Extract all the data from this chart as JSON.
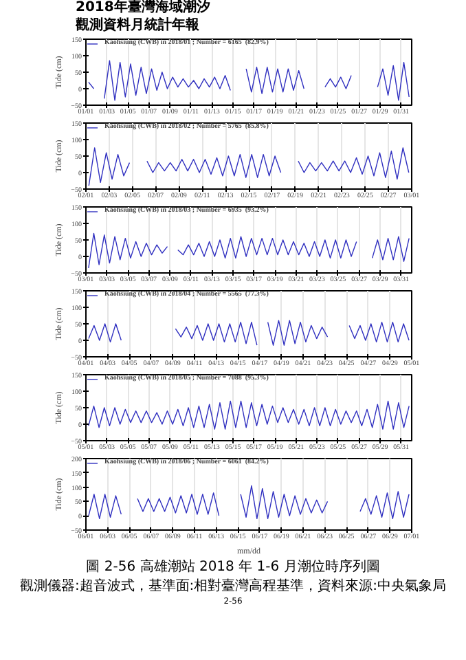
{
  "chart_data": [
    {
      "type": "line",
      "annotations": [
        "2018年臺灣海域潮汐",
        "觀測資料月統計年報"
      ],
      "ylabel": "Tide (cm)",
      "grid": "x",
      "legend": "top left",
      "line_style": "solid",
      "xlim": [
        "2018-01-01",
        "2018-02-01"
      ],
      "ylim": [
        -50,
        150
      ],
      "yticks": [
        -50,
        0,
        50,
        100,
        150
      ],
      "xticks": [
        {
          "value": "2018-01-01",
          "label": "01/01"
        },
        {
          "value": "2018-01-03",
          "label": "01/03"
        },
        {
          "value": "2018-01-05",
          "label": "01/05"
        },
        {
          "value": "2018-01-07",
          "label": "01/07"
        },
        {
          "value": "2018-01-09",
          "label": "01/09"
        },
        {
          "value": "2018-01-11",
          "label": "01/11"
        },
        {
          "value": "2018-01-13",
          "label": "01/13"
        },
        {
          "value": "2018-01-15",
          "label": "01/15"
        },
        {
          "value": "2018-01-17",
          "label": "01/17"
        },
        {
          "value": "2018-01-19",
          "label": "01/19"
        },
        {
          "value": "2018-01-21",
          "label": "01/21"
        },
        {
          "value": "2018-01-23",
          "label": "01/23"
        },
        {
          "value": "2018-01-25",
          "label": "01/25"
        },
        {
          "value": "2018-01-27",
          "label": "01/27"
        },
        {
          "value": "2018-01-29",
          "label": "01/29"
        },
        {
          "value": "2018-01-31",
          "label": "01/31"
        }
      ],
      "x": [
        "2018-01-01T06:00",
        "2018-01-01T18:00",
        "2018-01-02T06:00",
        "2018-01-02T18:00",
        "2018-01-03T06:00",
        "2018-01-03T18:00",
        "2018-01-04T06:00",
        "2018-01-04T18:00",
        "2018-01-05T06:00",
        "2018-01-05T18:00",
        "2018-01-06T06:00",
        "2018-01-06T18:00",
        "2018-01-07T06:00",
        "2018-01-07T18:00",
        "2018-01-08T06:00",
        "2018-01-08T18:00",
        "2018-01-09T06:00",
        "2018-01-09T18:00",
        "2018-01-10T06:00",
        "2018-01-10T18:00",
        "2018-01-11T06:00",
        "2018-01-11T18:00",
        "2018-01-12T06:00",
        "2018-01-12T18:00",
        "2018-01-13T06:00",
        "2018-01-13T18:00",
        "2018-01-14T06:00",
        "2018-01-14T18:00",
        "2018-01-15T06:00",
        "2018-01-15T18:00",
        "2018-01-16T06:00",
        "2018-01-16T18:00",
        "2018-01-17T06:00",
        "2018-01-17T18:00",
        "2018-01-18T06:00",
        "2018-01-18T18:00",
        "2018-01-19T06:00",
        "2018-01-19T18:00",
        "2018-01-20T06:00",
        "2018-01-20T18:00",
        "2018-01-21T06:00",
        "2018-01-21T18:00",
        "2018-01-22T06:00",
        "2018-01-22T18:00",
        "2018-01-23T06:00",
        "2018-01-23T18:00",
        "2018-01-24T06:00",
        "2018-01-24T18:00",
        "2018-01-25T06:00",
        "2018-01-25T18:00",
        "2018-01-26T06:00",
        "2018-01-26T18:00",
        "2018-01-27T06:00",
        "2018-01-27T18:00",
        "2018-01-28T06:00",
        "2018-01-28T18:00",
        "2018-01-29T06:00",
        "2018-01-29T18:00",
        "2018-01-30T06:00",
        "2018-01-30T18:00",
        "2018-01-31T06:00",
        "2018-01-31T18:00"
      ],
      "series": [
        {
          "name": "Kaohsiung (CWB) in 2018/01 ; Number = 6165  (82.9%)",
          "color": "#3030c0",
          "values": [
            20,
            0,
            null,
            -30,
            85,
            -35,
            80,
            -25,
            75,
            -20,
            65,
            -15,
            60,
            -5,
            50,
            0,
            35,
            5,
            30,
            5,
            25,
            0,
            30,
            5,
            35,
            0,
            40,
            -5,
            null,
            null,
            60,
            -10,
            65,
            -15,
            65,
            -10,
            60,
            -10,
            60,
            -5,
            55,
            0,
            null,
            null,
            null,
            5,
            30,
            5,
            35,
            0,
            40,
            null,
            null,
            null,
            null,
            5,
            60,
            -20,
            70,
            -35,
            80,
            -25
          ]
        }
      ]
    },
    {
      "type": "line",
      "ylabel": "Tide (cm)",
      "grid": "x",
      "legend": "top left",
      "line_style": "solid",
      "xlim": [
        "2018-02-01",
        "2018-03-01"
      ],
      "ylim": [
        -50,
        150
      ],
      "yticks": [
        -50,
        0,
        50,
        100,
        150
      ],
      "xticks": [
        {
          "value": "2018-02-01",
          "label": "02/01"
        },
        {
          "value": "2018-02-03",
          "label": "02/03"
        },
        {
          "value": "2018-02-05",
          "label": "02/05"
        },
        {
          "value": "2018-02-07",
          "label": "02/07"
        },
        {
          "value": "2018-02-09",
          "label": "02/09"
        },
        {
          "value": "2018-02-11",
          "label": "02/11"
        },
        {
          "value": "2018-02-13",
          "label": "02/13"
        },
        {
          "value": "2018-02-15",
          "label": "02/15"
        },
        {
          "value": "2018-02-17",
          "label": "02/17"
        },
        {
          "value": "2018-02-19",
          "label": "02/19"
        },
        {
          "value": "2018-02-21",
          "label": "02/21"
        },
        {
          "value": "2018-02-23",
          "label": "02/23"
        },
        {
          "value": "2018-02-25",
          "label": "02/25"
        },
        {
          "value": "2018-02-27",
          "label": "02/27"
        },
        {
          "value": "2018-03-01",
          "label": "03/01"
        }
      ],
      "x": [
        "2018-02-01T06:00",
        "2018-02-01T18:00",
        "2018-02-02T06:00",
        "2018-02-02T18:00",
        "2018-02-03T06:00",
        "2018-02-03T18:00",
        "2018-02-04T06:00",
        "2018-02-04T18:00",
        "2018-02-05T06:00",
        "2018-02-05T18:00",
        "2018-02-06T06:00",
        "2018-02-06T18:00",
        "2018-02-07T06:00",
        "2018-02-07T18:00",
        "2018-02-08T06:00",
        "2018-02-08T18:00",
        "2018-02-09T06:00",
        "2018-02-09T18:00",
        "2018-02-10T06:00",
        "2018-02-10T18:00",
        "2018-02-11T06:00",
        "2018-02-11T18:00",
        "2018-02-12T06:00",
        "2018-02-12T18:00",
        "2018-02-13T06:00",
        "2018-02-13T18:00",
        "2018-02-14T06:00",
        "2018-02-14T18:00",
        "2018-02-15T06:00",
        "2018-02-15T18:00",
        "2018-02-16T06:00",
        "2018-02-16T18:00",
        "2018-02-17T06:00",
        "2018-02-17T18:00",
        "2018-02-18T06:00",
        "2018-02-18T18:00",
        "2018-02-19T06:00",
        "2018-02-19T18:00",
        "2018-02-20T06:00",
        "2018-02-20T18:00",
        "2018-02-21T06:00",
        "2018-02-21T18:00",
        "2018-02-22T06:00",
        "2018-02-22T18:00",
        "2018-02-23T06:00",
        "2018-02-23T18:00",
        "2018-02-24T06:00",
        "2018-02-24T18:00",
        "2018-02-25T06:00",
        "2018-02-25T18:00",
        "2018-02-26T06:00",
        "2018-02-26T18:00",
        "2018-02-27T06:00",
        "2018-02-27T18:00",
        "2018-02-28T06:00",
        "2018-02-28T18:00"
      ],
      "series": [
        {
          "name": "Kaohsiung (CWB) in 2018/02 ; Number = 5765  (85.8%)",
          "color": "#3030c0",
          "values": [
            -40,
            75,
            -30,
            60,
            -20,
            55,
            -10,
            30,
            null,
            null,
            35,
            0,
            30,
            5,
            30,
            5,
            40,
            5,
            40,
            0,
            40,
            -5,
            45,
            -10,
            50,
            -10,
            55,
            -15,
            55,
            -15,
            55,
            -10,
            50,
            0,
            null,
            null,
            35,
            0,
            30,
            5,
            30,
            5,
            35,
            5,
            35,
            0,
            45,
            -5,
            50,
            -10,
            60,
            -15,
            65,
            -20,
            75,
            0
          ]
        }
      ]
    },
    {
      "type": "line",
      "ylabel": "Tide (cm)",
      "grid": "x",
      "legend": "top left",
      "line_style": "solid",
      "xlim": [
        "2018-03-01",
        "2018-04-01"
      ],
      "ylim": [
        -50,
        150
      ],
      "yticks": [
        -50,
        0,
        50,
        100,
        150
      ],
      "xticks": [
        {
          "value": "2018-03-01",
          "label": "03/01"
        },
        {
          "value": "2018-03-03",
          "label": "03/03"
        },
        {
          "value": "2018-03-05",
          "label": "03/05"
        },
        {
          "value": "2018-03-07",
          "label": "03/07"
        },
        {
          "value": "2018-03-09",
          "label": "03/09"
        },
        {
          "value": "2018-03-11",
          "label": "03/11"
        },
        {
          "value": "2018-03-13",
          "label": "03/13"
        },
        {
          "value": "2018-03-15",
          "label": "03/15"
        },
        {
          "value": "2018-03-17",
          "label": "03/17"
        },
        {
          "value": "2018-03-19",
          "label": "03/19"
        },
        {
          "value": "2018-03-21",
          "label": "03/21"
        },
        {
          "value": "2018-03-23",
          "label": "03/23"
        },
        {
          "value": "2018-03-25",
          "label": "03/25"
        },
        {
          "value": "2018-03-27",
          "label": "03/27"
        },
        {
          "value": "2018-03-29",
          "label": "03/29"
        },
        {
          "value": "2018-03-31",
          "label": "03/31"
        }
      ],
      "x": [
        "2018-03-01T06:00",
        "2018-03-01T18:00",
        "2018-03-02T06:00",
        "2018-03-02T18:00",
        "2018-03-03T06:00",
        "2018-03-03T18:00",
        "2018-03-04T06:00",
        "2018-03-04T18:00",
        "2018-03-05T06:00",
        "2018-03-05T18:00",
        "2018-03-06T06:00",
        "2018-03-06T18:00",
        "2018-03-07T06:00",
        "2018-03-07T18:00",
        "2018-03-08T06:00",
        "2018-03-08T18:00",
        "2018-03-09T06:00",
        "2018-03-09T18:00",
        "2018-03-10T06:00",
        "2018-03-10T18:00",
        "2018-03-11T06:00",
        "2018-03-11T18:00",
        "2018-03-12T06:00",
        "2018-03-12T18:00",
        "2018-03-13T06:00",
        "2018-03-13T18:00",
        "2018-03-14T06:00",
        "2018-03-14T18:00",
        "2018-03-15T06:00",
        "2018-03-15T18:00",
        "2018-03-16T06:00",
        "2018-03-16T18:00",
        "2018-03-17T06:00",
        "2018-03-17T18:00",
        "2018-03-18T06:00",
        "2018-03-18T18:00",
        "2018-03-19T06:00",
        "2018-03-19T18:00",
        "2018-03-20T06:00",
        "2018-03-20T18:00",
        "2018-03-21T06:00",
        "2018-03-21T18:00",
        "2018-03-22T06:00",
        "2018-03-22T18:00",
        "2018-03-23T06:00",
        "2018-03-23T18:00",
        "2018-03-24T06:00",
        "2018-03-24T18:00",
        "2018-03-25T06:00",
        "2018-03-25T18:00",
        "2018-03-26T06:00",
        "2018-03-26T18:00",
        "2018-03-27T06:00",
        "2018-03-27T18:00",
        "2018-03-28T06:00",
        "2018-03-28T18:00",
        "2018-03-29T06:00",
        "2018-03-29T18:00",
        "2018-03-30T06:00",
        "2018-03-30T18:00",
        "2018-03-31T06:00",
        "2018-03-31T18:00"
      ],
      "series": [
        {
          "name": "Kaohsiung (CWB) in 2018/03 ; Number = 6935  (93.2%)",
          "color": "#3030c0",
          "values": [
            -35,
            70,
            -25,
            65,
            -20,
            60,
            -10,
            55,
            -5,
            45,
            0,
            40,
            5,
            35,
            10,
            30,
            null,
            20,
            5,
            35,
            5,
            40,
            0,
            45,
            0,
            50,
            -5,
            55,
            -5,
            60,
            0,
            55,
            5,
            55,
            5,
            55,
            5,
            50,
            5,
            45,
            5,
            40,
            0,
            45,
            0,
            50,
            -5,
            50,
            -5,
            50,
            0,
            45,
            null,
            null,
            -5,
            50,
            -10,
            55,
            -10,
            60,
            -15,
            55
          ]
        }
      ]
    },
    {
      "type": "line",
      "ylabel": "Tide (cm)",
      "grid": "x",
      "legend": "top left",
      "line_style": "solid",
      "xlim": [
        "2018-04-01",
        "2018-05-01"
      ],
      "ylim": [
        -50,
        150
      ],
      "yticks": [
        -50,
        0,
        50,
        100,
        150
      ],
      "xticks": [
        {
          "value": "2018-04-01",
          "label": "04/01"
        },
        {
          "value": "2018-04-03",
          "label": "04/03"
        },
        {
          "value": "2018-04-05",
          "label": "04/05"
        },
        {
          "value": "2018-04-07",
          "label": "04/07"
        },
        {
          "value": "2018-04-09",
          "label": "04/09"
        },
        {
          "value": "2018-04-11",
          "label": "04/11"
        },
        {
          "value": "2018-04-13",
          "label": "04/13"
        },
        {
          "value": "2018-04-15",
          "label": "04/15"
        },
        {
          "value": "2018-04-17",
          "label": "04/17"
        },
        {
          "value": "2018-04-19",
          "label": "04/19"
        },
        {
          "value": "2018-04-21",
          "label": "04/21"
        },
        {
          "value": "2018-04-23",
          "label": "04/23"
        },
        {
          "value": "2018-04-25",
          "label": "04/25"
        },
        {
          "value": "2018-04-27",
          "label": "04/27"
        },
        {
          "value": "2018-04-29",
          "label": "04/29"
        },
        {
          "value": "2018-05-01",
          "label": "05/01"
        }
      ],
      "x": [
        "2018-04-01T06:00",
        "2018-04-01T18:00",
        "2018-04-02T06:00",
        "2018-04-02T18:00",
        "2018-04-03T06:00",
        "2018-04-03T18:00",
        "2018-04-04T06:00",
        "2018-04-04T18:00",
        "2018-04-05T06:00",
        "2018-04-05T18:00",
        "2018-04-06T06:00",
        "2018-04-06T18:00",
        "2018-04-07T06:00",
        "2018-04-07T18:00",
        "2018-04-08T06:00",
        "2018-04-08T18:00",
        "2018-04-09T06:00",
        "2018-04-09T18:00",
        "2018-04-10T06:00",
        "2018-04-10T18:00",
        "2018-04-11T06:00",
        "2018-04-11T18:00",
        "2018-04-12T06:00",
        "2018-04-12T18:00",
        "2018-04-13T06:00",
        "2018-04-13T18:00",
        "2018-04-14T06:00",
        "2018-04-14T18:00",
        "2018-04-15T06:00",
        "2018-04-15T18:00",
        "2018-04-16T06:00",
        "2018-04-16T18:00",
        "2018-04-17T06:00",
        "2018-04-17T18:00",
        "2018-04-18T06:00",
        "2018-04-18T18:00",
        "2018-04-19T06:00",
        "2018-04-19T18:00",
        "2018-04-20T06:00",
        "2018-04-20T18:00",
        "2018-04-21T06:00",
        "2018-04-21T18:00",
        "2018-04-22T06:00",
        "2018-04-22T18:00",
        "2018-04-23T06:00",
        "2018-04-23T18:00",
        "2018-04-24T06:00",
        "2018-04-24T18:00",
        "2018-04-25T06:00",
        "2018-04-25T18:00",
        "2018-04-26T06:00",
        "2018-04-26T18:00",
        "2018-04-27T06:00",
        "2018-04-27T18:00",
        "2018-04-28T06:00",
        "2018-04-28T18:00",
        "2018-04-29T06:00",
        "2018-04-29T18:00",
        "2018-04-30T06:00",
        "2018-04-30T18:00"
      ],
      "series": [
        {
          "name": "Kaohsiung (CWB) in 2018/04 ; Number = 5565  (77.3%)",
          "color": "#3030c0",
          "values": [
            5,
            45,
            0,
            50,
            -5,
            50,
            0,
            null,
            null,
            null,
            null,
            null,
            null,
            null,
            null,
            null,
            35,
            10,
            40,
            5,
            45,
            0,
            50,
            0,
            50,
            -5,
            50,
            -5,
            55,
            -10,
            55,
            -15,
            null,
            55,
            -15,
            60,
            -15,
            60,
            -10,
            55,
            -5,
            45,
            5,
            40,
            10,
            null,
            null,
            null,
            45,
            5,
            45,
            0,
            50,
            -5,
            55,
            -5,
            55,
            -5,
            50,
            0
          ]
        }
      ]
    },
    {
      "type": "line",
      "ylabel": "Tide (cm)",
      "grid": "x",
      "legend": "top left",
      "line_style": "solid",
      "xlim": [
        "2018-05-01",
        "2018-06-01"
      ],
      "ylim": [
        -50,
        150
      ],
      "yticks": [
        -50,
        0,
        50,
        100,
        150
      ],
      "xticks": [
        {
          "value": "2018-05-01",
          "label": "05/01"
        },
        {
          "value": "2018-05-03",
          "label": "05/03"
        },
        {
          "value": "2018-05-05",
          "label": "05/05"
        },
        {
          "value": "2018-05-07",
          "label": "05/07"
        },
        {
          "value": "2018-05-09",
          "label": "05/09"
        },
        {
          "value": "2018-05-11",
          "label": "05/11"
        },
        {
          "value": "2018-05-13",
          "label": "05/13"
        },
        {
          "value": "2018-05-15",
          "label": "05/15"
        },
        {
          "value": "2018-05-17",
          "label": "05/17"
        },
        {
          "value": "2018-05-19",
          "label": "05/19"
        },
        {
          "value": "2018-05-21",
          "label": "05/21"
        },
        {
          "value": "2018-05-23",
          "label": "05/23"
        },
        {
          "value": "2018-05-25",
          "label": "05/25"
        },
        {
          "value": "2018-05-27",
          "label": "05/27"
        },
        {
          "value": "2018-05-29",
          "label": "05/29"
        },
        {
          "value": "2018-05-31",
          "label": "05/31"
        }
      ],
      "x": [
        "2018-05-01T06:00",
        "2018-05-01T18:00",
        "2018-05-02T06:00",
        "2018-05-02T18:00",
        "2018-05-03T06:00",
        "2018-05-03T18:00",
        "2018-05-04T06:00",
        "2018-05-04T18:00",
        "2018-05-05T06:00",
        "2018-05-05T18:00",
        "2018-05-06T06:00",
        "2018-05-06T18:00",
        "2018-05-07T06:00",
        "2018-05-07T18:00",
        "2018-05-08T06:00",
        "2018-05-08T18:00",
        "2018-05-09T06:00",
        "2018-05-09T18:00",
        "2018-05-10T06:00",
        "2018-05-10T18:00",
        "2018-05-11T06:00",
        "2018-05-11T18:00",
        "2018-05-12T06:00",
        "2018-05-12T18:00",
        "2018-05-13T06:00",
        "2018-05-13T18:00",
        "2018-05-14T06:00",
        "2018-05-14T18:00",
        "2018-05-15T06:00",
        "2018-05-15T18:00",
        "2018-05-16T06:00",
        "2018-05-16T18:00",
        "2018-05-17T06:00",
        "2018-05-17T18:00",
        "2018-05-18T06:00",
        "2018-05-18T18:00",
        "2018-05-19T06:00",
        "2018-05-19T18:00",
        "2018-05-20T06:00",
        "2018-05-20T18:00",
        "2018-05-21T06:00",
        "2018-05-21T18:00",
        "2018-05-22T06:00",
        "2018-05-22T18:00",
        "2018-05-23T06:00",
        "2018-05-23T18:00",
        "2018-05-24T06:00",
        "2018-05-24T18:00",
        "2018-05-25T06:00",
        "2018-05-25T18:00",
        "2018-05-26T06:00",
        "2018-05-26T18:00",
        "2018-05-27T06:00",
        "2018-05-27T18:00",
        "2018-05-28T06:00",
        "2018-05-28T18:00",
        "2018-05-29T06:00",
        "2018-05-29T18:00",
        "2018-05-30T06:00",
        "2018-05-30T18:00",
        "2018-05-31T06:00",
        "2018-05-31T18:00"
      ],
      "series": [
        {
          "name": "Kaohsiung (CWB) in 2018/05 ; Number = 7088  (95.3%)",
          "color": "#3030c0",
          "values": [
            -5,
            55,
            -10,
            50,
            -5,
            50,
            0,
            45,
            5,
            40,
            5,
            40,
            5,
            35,
            0,
            40,
            0,
            45,
            -5,
            50,
            -10,
            55,
            -10,
            60,
            -15,
            65,
            -15,
            70,
            -10,
            70,
            -10,
            65,
            -5,
            60,
            0,
            55,
            5,
            50,
            5,
            45,
            0,
            45,
            -5,
            50,
            -5,
            50,
            -5,
            45,
            0,
            40,
            5,
            40,
            -5,
            45,
            -10,
            60,
            -15,
            70,
            -15,
            65,
            -10,
            55
          ]
        }
      ]
    },
    {
      "type": "line",
      "annotations": [
        "圖 2-56 高雄潮站 2018 年 1-6 月潮位時序列圖",
        "觀測儀器:超音波式，基準面:相對臺灣高程基準，資料來源:中央氣象局",
        "2-56"
      ],
      "xlabel": "mm/dd",
      "ylabel": "Tide (cm)",
      "grid": "x",
      "legend": "top left",
      "line_style": "solid",
      "xlim": [
        "2018-06-01",
        "2018-07-01"
      ],
      "ylim": [
        -50,
        200
      ],
      "yticks": [
        -50,
        0,
        50,
        100,
        150,
        200
      ],
      "xticks": [
        {
          "value": "2018-06-01",
          "label": "06/01"
        },
        {
          "value": "2018-06-03",
          "label": "06/03"
        },
        {
          "value": "2018-06-05",
          "label": "06/05"
        },
        {
          "value": "2018-06-07",
          "label": "06/07"
        },
        {
          "value": "2018-06-09",
          "label": "06/09"
        },
        {
          "value": "2018-06-11",
          "label": "06/11"
        },
        {
          "value": "2018-06-13",
          "label": "06/13"
        },
        {
          "value": "2018-06-15",
          "label": "06/15"
        },
        {
          "value": "2018-06-17",
          "label": "06/17"
        },
        {
          "value": "2018-06-19",
          "label": "06/19"
        },
        {
          "value": "2018-06-21",
          "label": "06/21"
        },
        {
          "value": "2018-06-23",
          "label": "06/23"
        },
        {
          "value": "2018-06-25",
          "label": "06/25"
        },
        {
          "value": "2018-06-27",
          "label": "06/27"
        },
        {
          "value": "2018-06-29",
          "label": "06/29"
        },
        {
          "value": "2018-07-01",
          "label": "07/01"
        }
      ],
      "x": [
        "2018-06-01T06:00",
        "2018-06-01T18:00",
        "2018-06-02T06:00",
        "2018-06-02T18:00",
        "2018-06-03T06:00",
        "2018-06-03T18:00",
        "2018-06-04T06:00",
        "2018-06-04T18:00",
        "2018-06-05T06:00",
        "2018-06-05T18:00",
        "2018-06-06T06:00",
        "2018-06-06T18:00",
        "2018-06-07T06:00",
        "2018-06-07T18:00",
        "2018-06-08T06:00",
        "2018-06-08T18:00",
        "2018-06-09T06:00",
        "2018-06-09T18:00",
        "2018-06-10T06:00",
        "2018-06-10T18:00",
        "2018-06-11T06:00",
        "2018-06-11T18:00",
        "2018-06-12T06:00",
        "2018-06-12T18:00",
        "2018-06-13T06:00",
        "2018-06-13T18:00",
        "2018-06-14T06:00",
        "2018-06-14T18:00",
        "2018-06-15T06:00",
        "2018-06-15T18:00",
        "2018-06-16T06:00",
        "2018-06-16T18:00",
        "2018-06-17T06:00",
        "2018-06-17T18:00",
        "2018-06-18T06:00",
        "2018-06-18T18:00",
        "2018-06-19T06:00",
        "2018-06-19T18:00",
        "2018-06-20T06:00",
        "2018-06-20T18:00",
        "2018-06-21T06:00",
        "2018-06-21T18:00",
        "2018-06-22T06:00",
        "2018-06-22T18:00",
        "2018-06-23T06:00",
        "2018-06-23T18:00",
        "2018-06-24T06:00",
        "2018-06-24T18:00",
        "2018-06-25T06:00",
        "2018-06-25T18:00",
        "2018-06-26T06:00",
        "2018-06-26T18:00",
        "2018-06-27T06:00",
        "2018-06-27T18:00",
        "2018-06-28T06:00",
        "2018-06-28T18:00",
        "2018-06-29T06:00",
        "2018-06-29T18:00",
        "2018-06-30T06:00",
        "2018-06-30T18:00"
      ],
      "series": [
        {
          "name": "Kaohsiung (CWB) in 2018/06 ; Number = 6061  (84.2%)",
          "color": "#3030c0",
          "values": [
            0,
            75,
            -10,
            75,
            -5,
            70,
            5,
            null,
            null,
            60,
            15,
            60,
            15,
            60,
            15,
            65,
            10,
            70,
            10,
            75,
            5,
            75,
            5,
            80,
            0,
            null,
            null,
            null,
            75,
            -5,
            105,
            -10,
            95,
            -10,
            85,
            -5,
            75,
            0,
            70,
            5,
            60,
            10,
            55,
            10,
            50,
            null,
            null,
            null,
            null,
            null,
            15,
            60,
            5,
            70,
            -5,
            80,
            -10,
            85,
            -5,
            75
          ]
        }
      ]
    }
  ]
}
